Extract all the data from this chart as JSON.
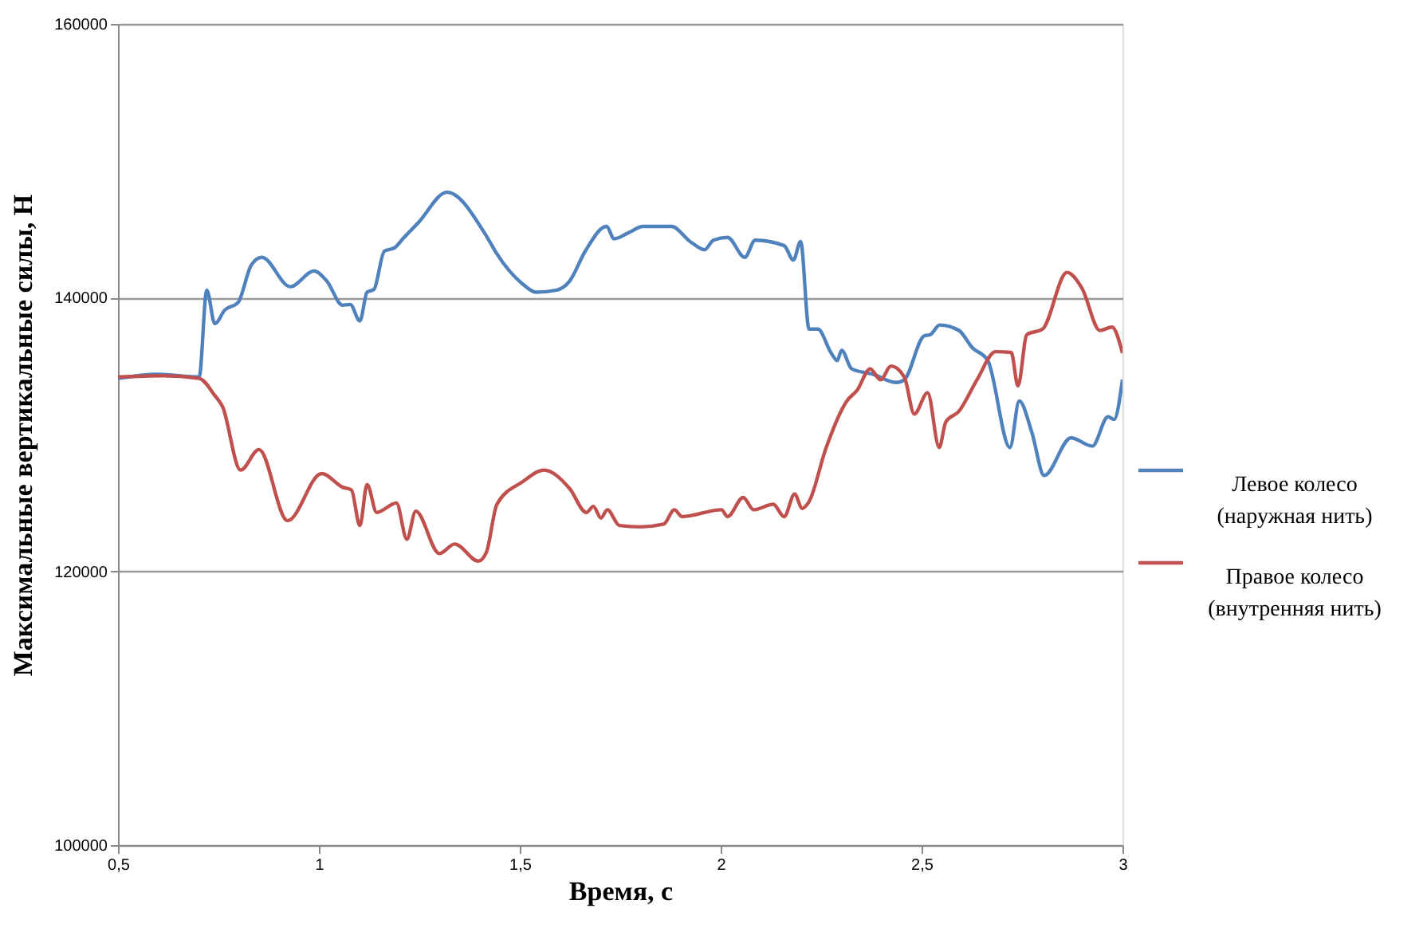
{
  "chart_data": {
    "type": "line",
    "xlabel": "Время, с",
    "ylabel": "Максимальные вертикальные силы, Н",
    "xlim": [
      0.5,
      3
    ],
    "xticks": [
      {
        "value": 0.5,
        "label": "0,5"
      },
      1,
      {
        "value": 1.5,
        "label": "1,5"
      },
      2,
      {
        "value": 2.5,
        "label": "2,5"
      },
      3
    ],
    "ylim": [
      100000,
      160000
    ],
    "yticks": [
      100000,
      120000,
      140000,
      160000
    ],
    "grid": "y",
    "legend": "right",
    "line_style": "solid",
    "marker": "none",
    "series": [
      {
        "name": "Левое колесо\n(наружная нить)",
        "color": "#4f81bd",
        "x": [
          0.5,
          0.598,
          0.702,
          0.721,
          0.741,
          0.766,
          0.799,
          0.832,
          0.858,
          0.929,
          0.988,
          1.02,
          1.059,
          1.078,
          1.102,
          1.12,
          1.137,
          1.163,
          1.189,
          1.209,
          1.248,
          1.319,
          1.417,
          1.443,
          1.507,
          1.54,
          1.592,
          1.624,
          1.663,
          1.716,
          1.735,
          1.768,
          1.807,
          1.878,
          1.924,
          1.96,
          1.982,
          2.017,
          2.06,
          2.086,
          2.158,
          2.181,
          2.199,
          2.22,
          2.242,
          2.275,
          2.29,
          2.301,
          2.326,
          2.379,
          2.437,
          2.457,
          2.506,
          2.522,
          2.545,
          2.593,
          2.626,
          2.665,
          2.72,
          2.743,
          2.775,
          2.805,
          2.872,
          2.925,
          2.964,
          2.979,
          3.0
        ],
        "values": [
          134100,
          134400,
          134200,
          140550,
          138100,
          139100,
          139650,
          142400,
          142950,
          140800,
          141950,
          141200,
          139450,
          139500,
          138300,
          140400,
          140600,
          143400,
          143650,
          144300,
          145500,
          147700,
          144500,
          143200,
          141000,
          140400,
          140550,
          141200,
          143400,
          145200,
          144300,
          144700,
          145200,
          145200,
          144100,
          143500,
          144200,
          144400,
          142950,
          144200,
          143800,
          142750,
          144100,
          137700,
          137700,
          135950,
          135400,
          136150,
          134800,
          134400,
          133800,
          134000,
          137200,
          137300,
          138000,
          137600,
          136350,
          135400,
          129050,
          132450,
          130100,
          127000,
          129750,
          129150,
          131300,
          131100,
          134000
        ]
      },
      {
        "name": "Правое колесо\n(внутренняя нить)",
        "color": "#c0504d",
        "x": [
          0.5,
          0.61,
          0.702,
          0.741,
          0.76,
          0.805,
          0.851,
          0.922,
          1.007,
          1.059,
          1.081,
          1.102,
          1.12,
          1.144,
          1.193,
          1.219,
          1.241,
          1.3,
          1.338,
          1.397,
          1.417,
          1.443,
          1.507,
          1.56,
          1.624,
          1.666,
          1.683,
          1.702,
          1.718,
          1.748,
          1.8,
          1.858,
          1.885,
          1.904,
          2.002,
          2.017,
          2.056,
          2.082,
          2.131,
          2.158,
          2.184,
          2.203,
          2.22,
          2.262,
          2.314,
          2.34,
          2.372,
          2.398,
          2.424,
          2.457,
          2.482,
          2.515,
          2.544,
          2.56,
          2.593,
          2.638,
          2.684,
          2.723,
          2.74,
          2.762,
          2.801,
          2.862,
          2.899,
          2.944,
          2.974,
          3.0
        ],
        "values": [
          134200,
          134300,
          134100,
          132850,
          132050,
          127400,
          128900,
          123700,
          127150,
          126150,
          125950,
          123350,
          126350,
          124300,
          125000,
          122350,
          124400,
          121300,
          122000,
          120750,
          121400,
          124900,
          126550,
          127400,
          126050,
          124300,
          124750,
          123900,
          124500,
          123350,
          123250,
          123450,
          124500,
          124000,
          124500,
          124000,
          125400,
          124500,
          124900,
          124000,
          125650,
          124600,
          125100,
          129000,
          132450,
          133250,
          134800,
          134000,
          135000,
          134200,
          131500,
          133050,
          129050,
          130900,
          131700,
          134000,
          136050,
          136000,
          133550,
          137300,
          137700,
          141850,
          140700,
          137600,
          137850,
          135950
        ]
      }
    ]
  }
}
